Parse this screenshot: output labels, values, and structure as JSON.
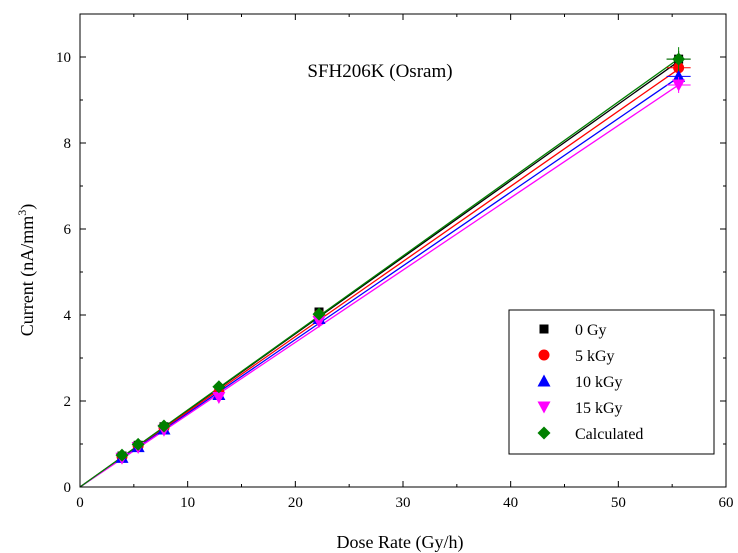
{
  "chart_data": {
    "type": "scatter",
    "title": "SFH206K (Osram)",
    "xlabel": "Dose Rate (Gy/h)",
    "ylabel_base": "Current (nA/mm",
    "ylabel_sup": "3",
    "ylabel_tail": ")",
    "xlim": [
      0,
      60
    ],
    "ylim": [
      0,
      11
    ],
    "xticks": [
      "0",
      "10",
      "20",
      "30",
      "40",
      "50",
      "60"
    ],
    "yticks": [
      "0",
      "2",
      "4",
      "6",
      "8",
      "10"
    ],
    "grid": false,
    "legend_position": "bottom-right",
    "series": [
      {
        "name": "0 Gy",
        "color": "#000000",
        "marker": "square",
        "x": [
          3.9,
          5.4,
          7.8,
          12.9,
          22.2,
          55.6
        ],
        "y": [
          0.72,
          0.97,
          1.4,
          2.25,
          4.07,
          9.95
        ],
        "fit": [
          [
            0,
            0.0
          ],
          [
            55.6,
            9.9
          ]
        ]
      },
      {
        "name": "5 kGy",
        "color": "#ff0000",
        "marker": "circle",
        "x": [
          3.9,
          5.4,
          7.8,
          12.9,
          22.2,
          55.6
        ],
        "y": [
          0.71,
          0.96,
          1.38,
          2.2,
          4.0,
          9.75
        ],
        "fit": [
          [
            0,
            0.0
          ],
          [
            55.6,
            9.72
          ]
        ]
      },
      {
        "name": "10 kGy",
        "color": "#0000ff",
        "marker": "triangle-up",
        "x": [
          3.9,
          5.4,
          7.8,
          12.9,
          22.2,
          55.6
        ],
        "y": [
          0.69,
          0.94,
          1.35,
          2.15,
          3.92,
          9.55
        ],
        "fit": [
          [
            0,
            0.0
          ],
          [
            55.6,
            9.53
          ]
        ]
      },
      {
        "name": "15 kGy",
        "color": "#ff00ff",
        "marker": "triangle-down",
        "x": [
          3.9,
          5.4,
          7.8,
          12.9,
          22.2,
          55.6
        ],
        "y": [
          0.67,
          0.92,
          1.32,
          2.08,
          3.85,
          9.35
        ],
        "fit": [
          [
            0,
            0.0
          ],
          [
            55.6,
            9.35
          ]
        ]
      },
      {
        "name": "Calculated",
        "color": "#008000",
        "marker": "diamond",
        "x": [
          3.9,
          5.4,
          7.8,
          12.9,
          22.2,
          55.6
        ],
        "y": [
          0.74,
          0.99,
          1.42,
          2.33,
          4.02,
          9.95
        ],
        "fit": [
          [
            0,
            0.0
          ],
          [
            55.6,
            9.96
          ]
        ]
      }
    ]
  }
}
